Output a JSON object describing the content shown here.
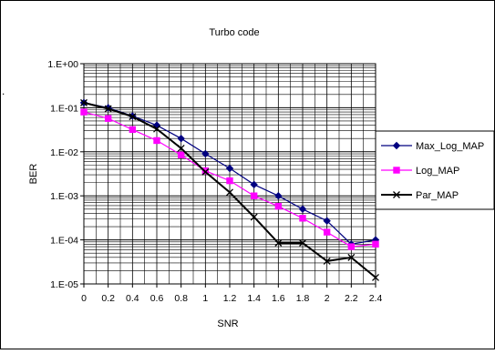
{
  "chart_data": {
    "type": "line",
    "title": "Turbo code",
    "xlabel": "SNR",
    "ylabel": "BER",
    "x_categories": [
      "0",
      "0.2",
      "0.4",
      "0.6",
      "0.8",
      "1",
      "1.2",
      "1.4",
      "1.6",
      "1.8",
      "2",
      "2.2",
      "2.4"
    ],
    "y_scale": "log",
    "ylim": [
      1e-05,
      1
    ],
    "y_ticks": [
      {
        "value": 1,
        "label": "1.E+00"
      },
      {
        "value": 0.1,
        "label": "1.E-01"
      },
      {
        "value": 0.01,
        "label": "1.E-02"
      },
      {
        "value": 0.001,
        "label": "1.E-03"
      },
      {
        "value": 0.0001,
        "label": "1.E-04"
      },
      {
        "value": 1e-05,
        "label": "1.E-05"
      }
    ],
    "grid": true,
    "legend_position": "right",
    "series": [
      {
        "name": "Max_Log_MAP",
        "color": "#000080",
        "marker": "diamond",
        "values": [
          0.13,
          0.1,
          0.065,
          0.04,
          0.02,
          0.009,
          0.0042,
          0.0018,
          0.001,
          0.0005,
          0.00027,
          8e-05,
          0.0001
        ]
      },
      {
        "name": "Log_MAP",
        "color": "#ff00ff",
        "marker": "square",
        "values": [
          0.08,
          0.057,
          0.032,
          0.018,
          0.0085,
          0.0037,
          0.0022,
          0.001,
          0.00058,
          0.00031,
          0.00015,
          7e-05,
          8e-05
        ]
      },
      {
        "name": "Par_MAP",
        "color": "#000000",
        "marker": "x",
        "values": [
          0.13,
          0.095,
          0.063,
          0.033,
          0.012,
          0.0035,
          0.0012,
          0.00033,
          8.5e-05,
          8.5e-05,
          3.3e-05,
          4e-05,
          1.4e-05
        ]
      }
    ]
  }
}
